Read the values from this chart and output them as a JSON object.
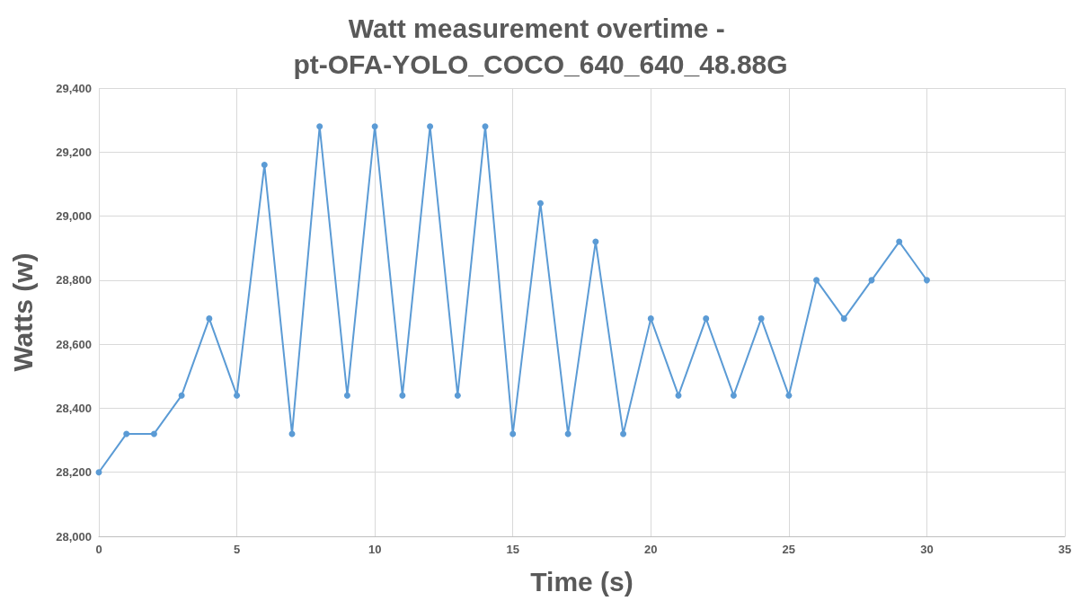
{
  "chart_data": {
    "type": "line",
    "title": "Watt measurement overtime - pt-OFA-YOLO_COCO_640_640_48.88G",
    "xlabel": "Time (s)",
    "ylabel": "Watts (w)",
    "x": [
      0,
      1,
      2,
      3,
      4,
      5,
      6,
      7,
      8,
      9,
      10,
      11,
      12,
      13,
      14,
      15,
      16,
      17,
      18,
      19,
      20,
      21,
      22,
      23,
      24,
      25,
      26,
      27,
      28,
      29,
      30
    ],
    "series": [
      {
        "color": "#5b9bd5",
        "values": [
          28200,
          28320,
          28320,
          28440,
          28680,
          28440,
          29160,
          28320,
          29280,
          28440,
          29280,
          28440,
          29280,
          28440,
          29280,
          28320,
          29040,
          28320,
          28920,
          28320,
          28680,
          28440,
          28680,
          28440,
          28680,
          28440,
          28800,
          28680,
          28800,
          28920,
          28800
        ]
      }
    ],
    "xlim": [
      0,
      35
    ],
    "xticks": [
      0,
      5,
      10,
      15,
      20,
      25,
      30,
      35
    ],
    "ylim": [
      28000,
      29400
    ],
    "yticks": [
      {
        "value": 28000,
        "label": "28,000"
      },
      {
        "value": 28200,
        "label": "28,200"
      },
      {
        "value": 28400,
        "label": "28,400"
      },
      {
        "value": 28600,
        "label": "28,600"
      },
      {
        "value": 28800,
        "label": "28,800"
      },
      {
        "value": 29000,
        "label": "29,000"
      },
      {
        "value": 29200,
        "label": "29,200"
      },
      {
        "value": 29400,
        "label": "29,400"
      }
    ],
    "grid": true,
    "marker": "circle",
    "line_style": "solid"
  }
}
